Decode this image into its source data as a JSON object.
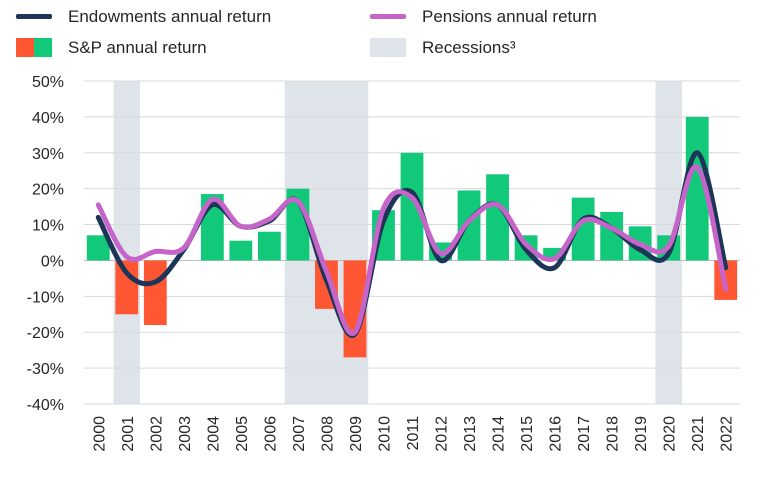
{
  "chart_data": {
    "type": "bar",
    "title": "",
    "xlabel": "",
    "ylabel": "",
    "ylim": [
      -40,
      50
    ],
    "yticks": [
      -40,
      -30,
      -20,
      -10,
      0,
      10,
      20,
      30,
      40,
      50
    ],
    "ytick_labels": [
      "-40%",
      "-30%",
      "-20%",
      "-10%",
      "0%",
      "10%",
      "20%",
      "30%",
      "40%",
      "50%"
    ],
    "grid": true,
    "categories": [
      "2000",
      "2001",
      "2002",
      "2003",
      "2004",
      "2005",
      "2006",
      "2007",
      "2008",
      "2009",
      "2010",
      "2011",
      "2012",
      "2013",
      "2014",
      "2015",
      "2016",
      "2017",
      "2018",
      "2019",
      "2020",
      "2021",
      "2022"
    ],
    "series": [
      {
        "name": "S&P annual return",
        "kind": "bar",
        "values": [
          7,
          -15,
          -18,
          0,
          18.5,
          5.5,
          8,
          20,
          -13.5,
          -27,
          14,
          30,
          5,
          19.5,
          24,
          7,
          3.5,
          17.5,
          13.5,
          9.5,
          7,
          40,
          -11
        ],
        "positive_color": "#12c97a",
        "negative_color": "#ff5733"
      },
      {
        "name": "Endowments annual return",
        "kind": "line",
        "values": [
          12,
          -3.5,
          -6,
          3,
          15.5,
          9.5,
          11,
          16.5,
          -5.5,
          -20.5,
          11,
          19,
          0,
          11,
          15.5,
          3,
          -2,
          11.5,
          9,
          3,
          2,
          30,
          -2
        ],
        "color": "#1d3557"
      },
      {
        "name": "Pensions annual return",
        "kind": "line",
        "values": [
          15.5,
          1,
          2.5,
          3.5,
          17,
          9.5,
          11.5,
          16.5,
          -3,
          -20,
          14.5,
          17.5,
          2,
          11,
          15.5,
          4.5,
          0.5,
          11,
          9,
          4.5,
          4,
          26,
          -8
        ],
        "color": "#c565c9"
      }
    ],
    "recessions": [
      {
        "name": "Recessions",
        "from": "2001",
        "to": "2001"
      },
      {
        "name": "Recessions",
        "from": "2007",
        "to": "2009"
      },
      {
        "name": "Recessions",
        "from": "2020",
        "to": "2020"
      }
    ],
    "legend": [
      {
        "label": "Endowments annual return",
        "kind": "line",
        "color": "#1d3557"
      },
      {
        "label": "Pensions annual return",
        "kind": "line",
        "color": "#c565c9"
      },
      {
        "label": "S&P annual return",
        "kind": "bar-split",
        "colors": [
          "#ff5733",
          "#12c97a"
        ]
      },
      {
        "label": "Recessions³",
        "kind": "box",
        "color": "#dfe4ea"
      }
    ]
  }
}
